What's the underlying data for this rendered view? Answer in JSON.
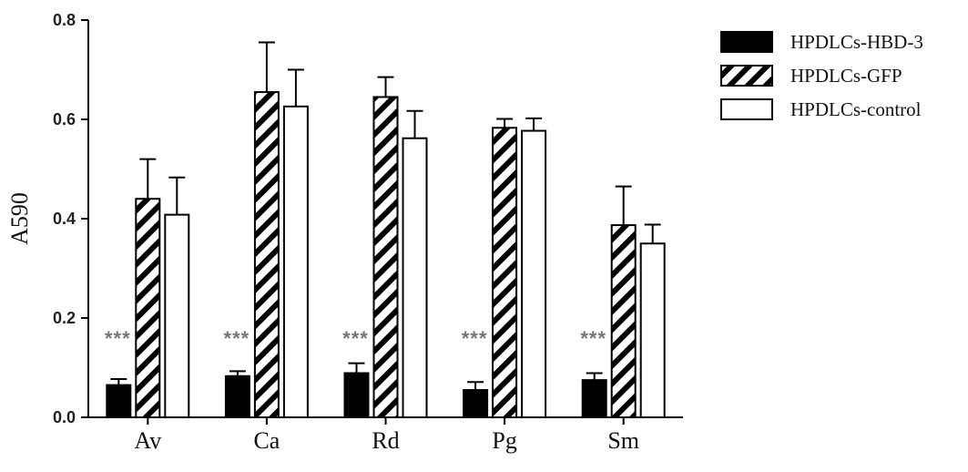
{
  "chart_data": {
    "type": "bar",
    "categories": [
      "Av",
      "Ca",
      "Rd",
      "Pg",
      "Sm"
    ],
    "series": [
      {
        "name": "HPDLCs-HBD-3",
        "values": [
          0.065,
          0.083,
          0.089,
          0.055,
          0.075
        ],
        "errors": [
          0.012,
          0.01,
          0.02,
          0.016,
          0.014
        ],
        "fill": "solid",
        "color": "#000000"
      },
      {
        "name": "HPDLCs-GFP",
        "values": [
          0.44,
          0.655,
          0.645,
          0.583,
          0.387
        ],
        "errors": [
          0.08,
          0.1,
          0.04,
          0.018,
          0.078
        ],
        "fill": "hatch",
        "color": "#000000"
      },
      {
        "name": "HPDLCs-control",
        "values": [
          0.408,
          0.626,
          0.562,
          0.577,
          0.35
        ],
        "errors": [
          0.075,
          0.074,
          0.055,
          0.025,
          0.038
        ],
        "fill": "empty",
        "color": "#000000"
      }
    ],
    "annotations": [
      "***",
      "***",
      "***",
      "***",
      "***"
    ],
    "ylabel": "A590",
    "xlabel": "",
    "ylim": [
      0.0,
      0.8
    ],
    "yticks": [
      "0.0",
      "0.2",
      "0.4",
      "0.6",
      "0.8"
    ],
    "grid": false,
    "legend_position": "top-right"
  }
}
